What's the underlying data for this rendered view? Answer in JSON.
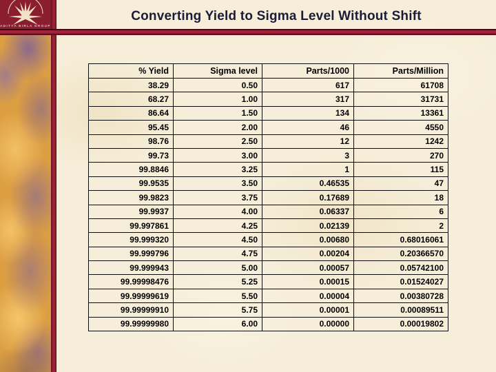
{
  "slide": {
    "title": "Converting Yield to Sigma Level Without Shift"
  },
  "logo": {
    "text": "ADITYA BIRLA GROUP"
  },
  "colors": {
    "background_cream": "#f6eed9",
    "accent_crimson": "#9e2136",
    "accent_dark_maroon": "#3f0a15",
    "logo_background": "#8a1e2e",
    "sidebar_gold": "#dd9e42",
    "sidebar_purple": "#7d5f9b",
    "title_text": "#1c1c38",
    "table_border": "#0a0a0a",
    "table_text": "#000000"
  },
  "table": {
    "headers": [
      "% Yield",
      "Sigma level",
      "Parts/1000",
      "Parts/Million"
    ],
    "rows": [
      [
        "38.29",
        "0.50",
        "617",
        "61708"
      ],
      [
        "68.27",
        "1.00",
        "317",
        "31731"
      ],
      [
        "86.64",
        "1.50",
        "134",
        "13361"
      ],
      [
        "95.45",
        "2.00",
        "46",
        "4550"
      ],
      [
        "98.76",
        "2.50",
        "12",
        "1242"
      ],
      [
        "99.73",
        "3.00",
        "3",
        "270"
      ],
      [
        "99.8846",
        "3.25",
        "1",
        "115"
      ],
      [
        "99.9535",
        "3.50",
        "0.46535",
        "47"
      ],
      [
        "99.9823",
        "3.75",
        "0.17689",
        "18"
      ],
      [
        "99.9937",
        "4.00",
        "0.06337",
        "6"
      ],
      [
        "99.997861",
        "4.25",
        "0.02139",
        "2"
      ],
      [
        "99.999320",
        "4.50",
        "0.00680",
        "0.68016061"
      ],
      [
        "99.999796",
        "4.75",
        "0.00204",
        "0.20366570"
      ],
      [
        "99.999943",
        "5.00",
        "0.00057",
        "0.05742100"
      ],
      [
        "99.99998476",
        "5.25",
        "0.00015",
        "0.01524027"
      ],
      [
        "99.99999619",
        "5.50",
        "0.00004",
        "0.00380728"
      ],
      [
        "99.99999910",
        "5.75",
        "0.00001",
        "0.00089511"
      ],
      [
        "99.99999980",
        "6.00",
        "0.00000",
        "0.00019802"
      ]
    ]
  }
}
